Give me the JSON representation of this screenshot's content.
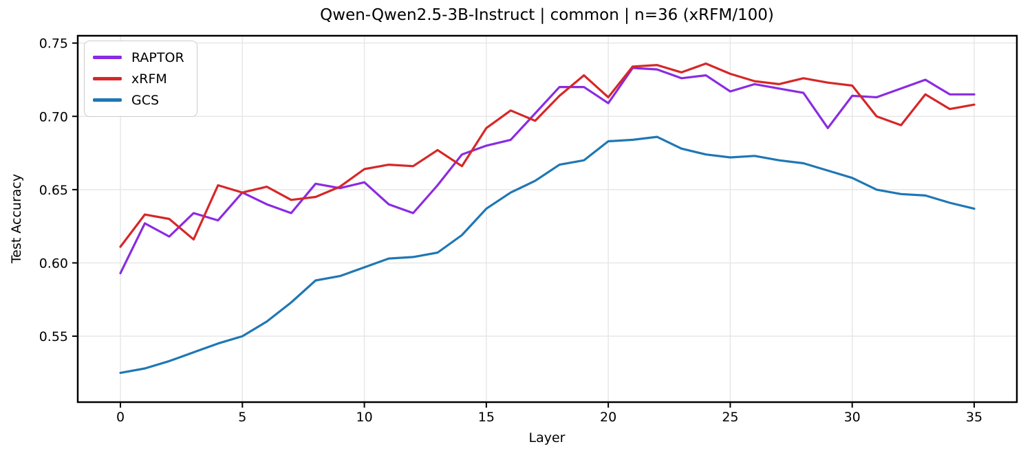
{
  "chart_data": {
    "type": "line",
    "title": "Qwen-Qwen2.5-3B-Instruct | common | n=36 (xRFM/100)",
    "xlabel": "Layer",
    "ylabel": "Test Accuracy",
    "x": [
      0,
      1,
      2,
      3,
      4,
      5,
      6,
      7,
      8,
      9,
      10,
      11,
      12,
      13,
      14,
      15,
      16,
      17,
      18,
      19,
      20,
      21,
      22,
      23,
      24,
      25,
      26,
      27,
      28,
      29,
      30,
      31,
      32,
      33,
      34,
      35
    ],
    "series": [
      {
        "name": "RAPTOR",
        "color": "#8a2be2",
        "values": [
          0.593,
          0.627,
          0.618,
          0.634,
          0.629,
          0.648,
          0.64,
          0.634,
          0.654,
          0.651,
          0.655,
          0.64,
          0.634,
          0.653,
          0.674,
          0.68,
          0.684,
          0.702,
          0.72,
          0.72,
          0.709,
          0.733,
          0.732,
          0.726,
          0.728,
          0.717,
          0.722,
          0.719,
          0.716,
          0.692,
          0.714,
          0.713,
          0.719,
          0.725,
          0.715,
          0.715
        ]
      },
      {
        "name": "xRFM",
        "color": "#d62728",
        "values": [
          0.611,
          0.633,
          0.63,
          0.616,
          0.653,
          0.648,
          0.652,
          0.643,
          0.645,
          0.652,
          0.664,
          0.667,
          0.666,
          0.677,
          0.666,
          0.692,
          0.704,
          0.697,
          0.714,
          0.728,
          0.713,
          0.734,
          0.735,
          0.73,
          0.736,
          0.729,
          0.724,
          0.722,
          0.726,
          0.723,
          0.721,
          0.7,
          0.694,
          0.715,
          0.705,
          0.708
        ]
      },
      {
        "name": "GCS",
        "color": "#1f77b4",
        "values": [
          0.525,
          0.528,
          0.533,
          0.539,
          0.545,
          0.55,
          0.56,
          0.573,
          0.588,
          0.591,
          0.597,
          0.603,
          0.604,
          0.607,
          0.619,
          0.637,
          0.648,
          0.656,
          0.667,
          0.67,
          0.683,
          0.684,
          0.686,
          0.678,
          0.674,
          0.672,
          0.673,
          0.67,
          0.668,
          0.663,
          0.658,
          0.65,
          0.647,
          0.646,
          0.641,
          0.637
        ]
      }
    ],
    "xlim": [
      -1.75,
      36.75
    ],
    "ylim": [
      0.505,
      0.755
    ],
    "xticks": [
      0,
      5,
      10,
      15,
      20,
      25,
      30,
      35
    ],
    "yticks": [
      0.55,
      0.6,
      0.65,
      0.7,
      0.75
    ],
    "grid": true,
    "legend_position": "upper left",
    "grid_color": "#e7e7e7",
    "spine_color": "#000000",
    "text_color": "#000000"
  }
}
